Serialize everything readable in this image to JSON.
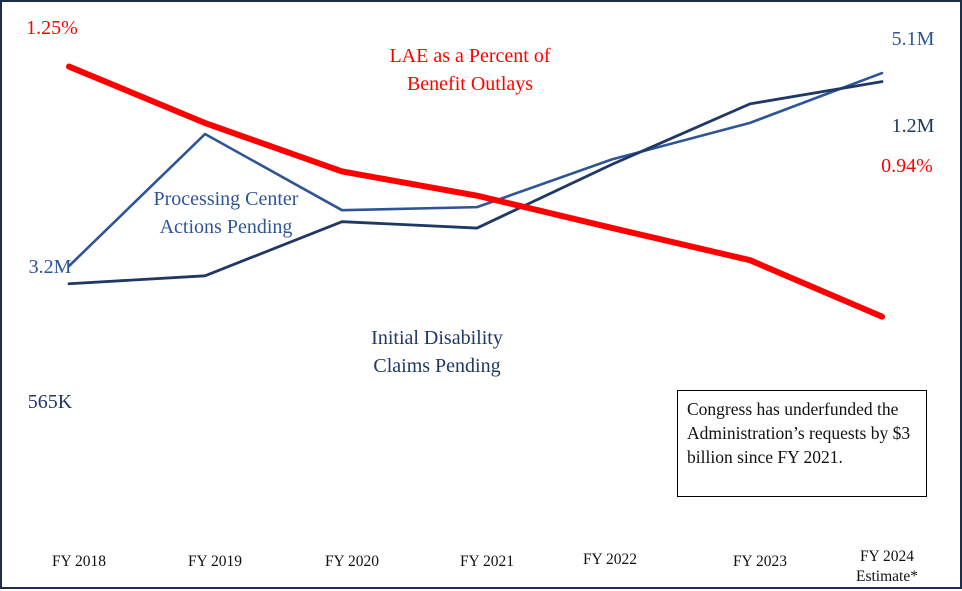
{
  "chart_data": {
    "type": "line",
    "title": "",
    "xlabel": "",
    "ylabel": "",
    "grid": false,
    "independent_scales": true,
    "categories": [
      [
        "FY 2018"
      ],
      [
        "FY 2019"
      ],
      [
        "FY 2020"
      ],
      [
        "FY 2021"
      ],
      [
        "FY 2022"
      ],
      [
        "FY 2023"
      ],
      [
        "FY 2024",
        "Estimate*"
      ]
    ],
    "series": [
      {
        "name": "LAE as a Percent of Benefit Outlays",
        "label_lines": [
          "LAE as a Percent of",
          "Benefit Outlays"
        ],
        "unit": "%",
        "color": "#ff0000",
        "values": [
          1.25,
          1.18,
          1.12,
          1.09,
          1.05,
          1.01,
          0.94
        ],
        "start_label": "1.25%",
        "end_label": "0.94%",
        "ylim": [
          0.6,
          1.33
        ]
      },
      {
        "name": "Processing Center Actions Pending",
        "label_lines": [
          "Processing Center",
          "Actions Pending"
        ],
        "unit": "millions",
        "color": "#2f5597",
        "values": [
          3.2,
          4.5,
          3.75,
          3.78,
          4.25,
          4.61,
          5.1
        ],
        "start_label": "3.2M",
        "end_label": "5.1M",
        "ylim": [
          0.0,
          5.8
        ]
      },
      {
        "name": "Initial Disability Claims Pending",
        "label_lines": [
          "Initial Disability",
          "Claims Pending"
        ],
        "unit": "millions",
        "color": "#1f3864",
        "values": [
          0.565,
          0.59,
          0.76,
          0.74,
          0.94,
          1.13,
          1.2
        ],
        "start_label": "565K",
        "end_label": "1.2M",
        "ylim": [
          -0.4,
          1.45
        ]
      }
    ],
    "annotations": [
      {
        "text": "Congress has underfunded the Administration’s requests by $3 billion since FY 2021.",
        "position": "bottom-right",
        "boxed": true
      }
    ]
  },
  "note": {
    "text": "Congress has underfunded the Administration’s requests by $3 billion since FY 2021."
  },
  "colors": {
    "border": "#1f2d4a",
    "axis_text": "#111111"
  }
}
